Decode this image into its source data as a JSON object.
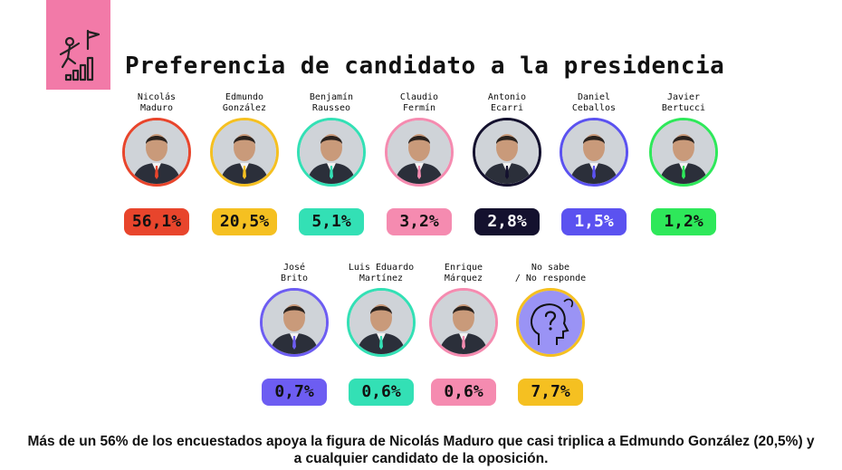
{
  "title": "Preferencia de candidato a la presidencia",
  "caption_line1": "Más de un 56% de los encuestados apoya la figura de Nicolás Maduro que casi triplica a Edmundo González (20,5%) y",
  "caption_line2": "a cualquier candidato de la oposición.",
  "header_icon": "climbing-stairs-flag-icon",
  "chart_data": {
    "type": "bar",
    "title": "Preferencia de candidato a la presidencia",
    "categories": [
      "Nicolás Maduro",
      "Edmundo González",
      "Benjamín Rausseo",
      "Claudio Fermín",
      "Antonio Ecarri",
      "Daniel Ceballos",
      "Javier Bertucci",
      "José Brito",
      "Luis Eduardo Martínez",
      "Enrique Márquez",
      "No sabe / No responde"
    ],
    "values": [
      56.1,
      20.5,
      5.1,
      3.2,
      2.8,
      1.5,
      1.2,
      0.7,
      0.6,
      0.6,
      7.7
    ],
    "unit": "%"
  },
  "candidates": [
    {
      "name": "Nicolás\nMaduro",
      "value": "56,1%",
      "color": "#e8452c"
    },
    {
      "name": "Edmundo\nGonzález",
      "value": "20,5%",
      "color": "#f5c021"
    },
    {
      "name": "Benjamín\nRausseo",
      "value": "5,1%",
      "color": "#33e0b5"
    },
    {
      "name": "Claudio\nFermín",
      "value": "3,2%",
      "color": "#f58bb0"
    },
    {
      "name": "Antonio\nEcarri",
      "value": "2,8%",
      "color": "#14112e",
      "text_color": "#ffffff"
    },
    {
      "name": "Daniel\nCeballos",
      "value": "1,5%",
      "color": "#5b52f0",
      "text_color": "#ffffff"
    },
    {
      "name": "Javier\nBertucci",
      "value": "1,2%",
      "color": "#2ee85a"
    },
    {
      "name": "José\nBrito",
      "value": "0,7%",
      "color": "#6d5df2"
    },
    {
      "name": "Luis Eduardo\nMartínez",
      "value": "0,6%",
      "color": "#33e0b5"
    },
    {
      "name": "Enrique\nMárquez",
      "value": "0,6%",
      "color": "#f58bb0"
    },
    {
      "name": "No sabe\n/ No responde",
      "value": "7,7%",
      "color": "#f5c021",
      "icon": "head-question-icon"
    }
  ]
}
